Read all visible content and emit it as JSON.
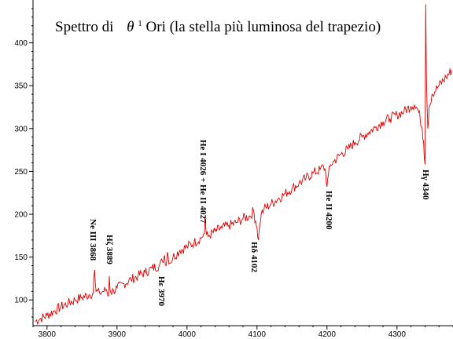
{
  "chart_data": {
    "type": "line",
    "title_prefix": "Spettro di",
    "title_symbol": "θ",
    "title_superscript": "1",
    "title_suffix": "Ori  (la stella più luminosa del trapezio)",
    "xlabel": "",
    "ylabel": "",
    "xlim": [
      3780,
      4380
    ],
    "ylim": [
      70,
      450
    ],
    "x_ticks": [
      3800,
      3900,
      4000,
      4100,
      4200,
      4300
    ],
    "y_ticks": [
      100,
      150,
      200,
      250,
      300,
      350,
      400
    ],
    "grid": false,
    "line_color": "#e00000",
    "series": [
      {
        "name": "",
        "x": [
          3783,
          3790,
          3800,
          3810,
          3820,
          3830,
          3840,
          3850,
          3860,
          3866,
          3867,
          3868,
          3869,
          3870,
          3875,
          3880,
          3885,
          3888,
          3889,
          3890,
          3891,
          3895,
          3900,
          3910,
          3920,
          3930,
          3940,
          3950,
          3960,
          3965,
          3968,
          3970,
          3972,
          3975,
          3980,
          3990,
          4000,
          4010,
          4020,
          4025,
          4026,
          4027,
          4028,
          4030,
          4040,
          4050,
          4060,
          4070,
          4080,
          4090,
          4095,
          4098,
          4100,
          4102,
          4104,
          4106,
          4110,
          4120,
          4130,
          4140,
          4150,
          4160,
          4170,
          4180,
          4190,
          4195,
          4198,
          4200,
          4202,
          4205,
          4210,
          4220,
          4230,
          4240,
          4250,
          4260,
          4270,
          4280,
          4290,
          4300,
          4310,
          4320,
          4325,
          4330,
          4333,
          4336,
          4338,
          4339,
          4340,
          4341,
          4342,
          4344,
          4346,
          4350,
          4360,
          4370,
          4378
        ],
        "y": [
          75,
          78,
          82,
          87,
          92,
          96,
          100,
          103,
          106,
          108,
          128,
          135,
          120,
          110,
          108,
          110,
          112,
          105,
          128,
          112,
          109,
          111,
          114,
          119,
          124,
          128,
          132,
          137,
          140,
          145,
          152,
          140,
          156,
          143,
          150,
          158,
          162,
          167,
          172,
          178,
          198,
          182,
          176,
          174,
          180,
          184,
          187,
          190,
          195,
          198,
          204,
          192,
          184,
          170,
          188,
          200,
          206,
          212,
          218,
          224,
          230,
          236,
          242,
          248,
          252,
          256,
          250,
          232,
          246,
          258,
          262,
          270,
          276,
          284,
          290,
          296,
          302,
          308,
          312,
          316,
          320,
          326,
          328,
          322,
          312,
          300,
          285,
          265,
          258,
          445,
          360,
          300,
          325,
          340,
          350,
          360,
          368
        ]
      }
    ],
    "annotations": [
      {
        "label": "Ne III 3868",
        "x": 3868,
        "y": 135
      },
      {
        "label": "Hζ 3889",
        "x": 3889,
        "y": 128
      },
      {
        "label": "Hε 3970",
        "x": 3970,
        "y": 140
      },
      {
        "label": "He I 4026 + He II 4027",
        "x": 4026,
        "y": 198
      },
      {
        "label": "Hδ 4102",
        "x": 4102,
        "y": 170
      },
      {
        "label": "He II 4200",
        "x": 4200,
        "y": 232
      },
      {
        "label": "Hγ 4340",
        "x": 4340,
        "y": 258
      }
    ]
  }
}
